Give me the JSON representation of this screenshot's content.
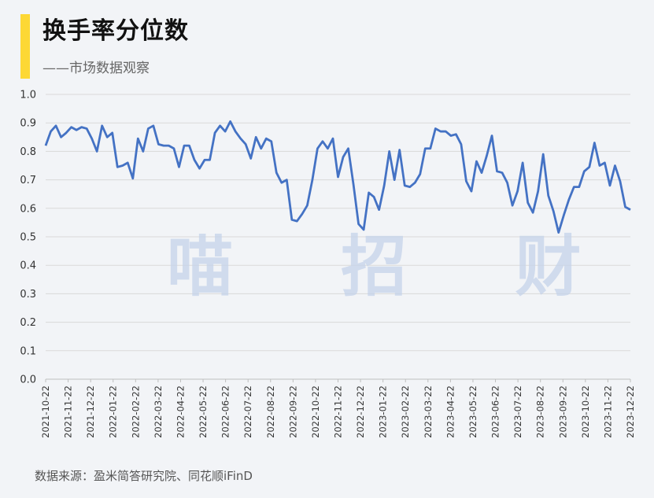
{
  "header": {
    "title": "换手率分位数",
    "subtitle": "——市场数据观察"
  },
  "watermark": "喵 招 财",
  "source": "数据来源：盈米简答研究院、同花顺iFinD",
  "colors": {
    "accent": "#fdd835",
    "line": "#4472c4",
    "grid": "#d9d9d9",
    "background": "#f2f4f7"
  },
  "chart_data": {
    "type": "line",
    "title": "换手率分位数",
    "ylim": [
      0,
      1.0
    ],
    "yticks": [
      "0.0",
      "0.1",
      "0.2",
      "0.3",
      "0.4",
      "0.5",
      "0.6",
      "0.7",
      "0.8",
      "0.9",
      "1.0"
    ],
    "xticks": [
      "2021-10-22",
      "2021-11-22",
      "2021-12-22",
      "2022-01-22",
      "2022-02-22",
      "2022-03-22",
      "2022-04-22",
      "2022-05-22",
      "2022-06-22",
      "2022-07-22",
      "2022-08-22",
      "2022-09-22",
      "2022-10-22",
      "2022-11-22",
      "2022-12-22",
      "2023-01-22",
      "2023-02-22",
      "2023-03-22",
      "2023-04-22",
      "2023-05-22",
      "2023-06-22",
      "2023-07-22",
      "2023-08-22",
      "2023-09-22",
      "2023-10-22",
      "2023-11-22",
      "2023-12-22"
    ],
    "grid": true,
    "series": [
      {
        "values": [
          0.82,
          0.87,
          0.89,
          0.85,
          0.865,
          0.885,
          0.875,
          0.885,
          0.88,
          0.845,
          0.8,
          0.89,
          0.85,
          0.865,
          0.745,
          0.75,
          0.76,
          0.705,
          0.845,
          0.8,
          0.88,
          0.89,
          0.825,
          0.82,
          0.82,
          0.81,
          0.745,
          0.82,
          0.82,
          0.77,
          0.74,
          0.77,
          0.77,
          0.865,
          0.89,
          0.87,
          0.905,
          0.87,
          0.845,
          0.825,
          0.775,
          0.85,
          0.81,
          0.845,
          0.835,
          0.725,
          0.69,
          0.7,
          0.56,
          0.555,
          0.58,
          0.61,
          0.7,
          0.81,
          0.835,
          0.81,
          0.845,
          0.71,
          0.78,
          0.81,
          0.685,
          0.545,
          0.525,
          0.655,
          0.64,
          0.595,
          0.68,
          0.8,
          0.7,
          0.805,
          0.68,
          0.675,
          0.69,
          0.72,
          0.81,
          0.81,
          0.88,
          0.87,
          0.87,
          0.855,
          0.86,
          0.825,
          0.695,
          0.66,
          0.765,
          0.725,
          0.785,
          0.855,
          0.73,
          0.725,
          0.69,
          0.61,
          0.66,
          0.76,
          0.62,
          0.585,
          0.66,
          0.79,
          0.645,
          0.59,
          0.515,
          0.575,
          0.63,
          0.675,
          0.675,
          0.73,
          0.745,
          0.83,
          0.75,
          0.76,
          0.68,
          0.75,
          0.695,
          0.605,
          0.595
        ]
      }
    ]
  }
}
